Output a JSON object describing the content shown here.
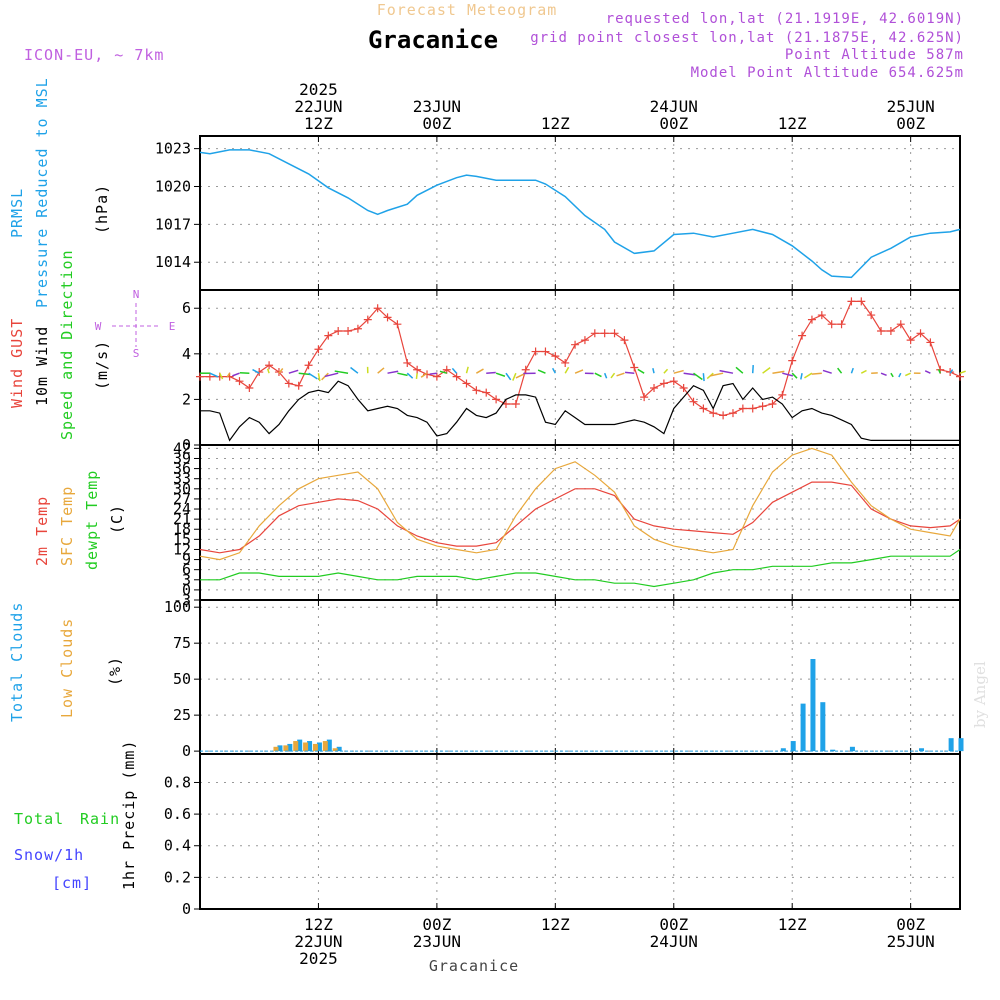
{
  "header": {
    "subtitle": "Forecast Meteogram",
    "model": "ICON-EU, ~ 7km",
    "location": "Gracanice",
    "requested": "requested lon,lat (21.1919E, 42.6019N)",
    "gridpoint": "grid point closest lon,lat (21.1875E, 42.625N)",
    "altitude": "Point Altitude 587m",
    "model_altitude": "Model Point Altitude 654.625m",
    "footer_location": "Gracanice",
    "credit": "by Angel"
  },
  "time_axis": {
    "top_labels": [
      {
        "h": 12,
        "lines": [
          "2025",
          "22JUN",
          "12Z"
        ]
      },
      {
        "h": 24,
        "lines": [
          "23JUN",
          "00Z"
        ]
      },
      {
        "h": 36,
        "lines": [
          "12Z"
        ]
      },
      {
        "h": 48,
        "lines": [
          "24JUN",
          "00Z"
        ]
      },
      {
        "h": 60,
        "lines": [
          "12Z"
        ]
      },
      {
        "h": 72,
        "lines": [
          "25JUN",
          "00Z"
        ]
      }
    ],
    "bottom_labels": [
      {
        "h": 12,
        "lines": [
          "12Z",
          "22JUN",
          "2025"
        ]
      },
      {
        "h": 24,
        "lines": [
          "00Z",
          "23JUN"
        ]
      },
      {
        "h": 36,
        "lines": [
          "12Z"
        ]
      },
      {
        "h": 48,
        "lines": [
          "00Z",
          "24JUN"
        ]
      },
      {
        "h": 60,
        "lines": [
          "12Z"
        ]
      },
      {
        "h": 72,
        "lines": [
          "00Z",
          "25JUN"
        ]
      }
    ],
    "start_hour": 0,
    "end_hour": 77
  },
  "panels": {
    "pressure": {
      "labels": [
        "PRMSL",
        "Pressure Reduced to MSL"
      ],
      "unit": "(hPa)",
      "ticks": [
        "1014",
        "1017",
        "1020",
        "1023"
      ]
    },
    "wind": {
      "labels": [
        "Wind GUST",
        "10m Wind",
        "Speed and Direction"
      ],
      "unit": "(m/s)",
      "ticks": [
        "0",
        "2",
        "4",
        "6"
      ],
      "compass": {
        "n": "N",
        "s": "S",
        "w": "W",
        "e": "E"
      }
    },
    "temp": {
      "labels": [
        "2m Temp",
        "SFC Temp",
        "dewpt Temp"
      ],
      "unit": "(C)",
      "ticks": [
        "-3",
        "0",
        "3",
        "6",
        "9",
        "12",
        "15",
        "18",
        "21",
        "24",
        "27",
        "30",
        "33",
        "36",
        "39",
        "42"
      ]
    },
    "cloud": {
      "labels": [
        "Total Clouds",
        "Low Clouds"
      ],
      "unit": "(%)",
      "ticks": [
        "0",
        "25",
        "50",
        "75",
        "100"
      ]
    },
    "precip": {
      "labels": [
        "Total",
        "Rain",
        "Snow/1h",
        "[cm]"
      ],
      "unit": "1hr Precip (mm)",
      "ticks": [
        "0",
        "0.2",
        "0.4",
        "0.6",
        "0.8"
      ]
    }
  },
  "colors": {
    "pressure": "#1fa2e8",
    "gust": "#e8453c",
    "wind": "#000000",
    "t2m": "#e8453c",
    "sfc": "#e8a83c",
    "dewpt": "#22cc22",
    "cloud_total": "#1fa2e8",
    "cloud_low": "#e8a83c",
    "rain": "#22cc22",
    "snow": "#4444ff",
    "title": "#f0c890",
    "model": "#c060e0",
    "info": "#b050d8"
  },
  "chart_data": [
    {
      "type": "line",
      "title": "PRMSL Pressure Reduced to MSL",
      "ylabel": "(hPa)",
      "ylim": [
        1011.8,
        1024
      ],
      "series": [
        {
          "name": "PRMSL",
          "x": [
            0,
            1,
            3,
            5,
            7,
            9,
            11,
            13,
            15,
            17,
            18,
            19,
            21,
            22,
            24,
            26,
            27,
            28,
            30,
            32,
            34,
            35,
            37,
            39,
            41,
            42,
            44,
            46,
            48,
            50,
            52,
            54,
            56,
            58,
            60,
            62,
            63,
            64,
            66,
            68,
            70,
            72,
            74,
            76,
            77
          ],
          "values": [
            1022.7,
            1022.6,
            1022.9,
            1022.9,
            1022.6,
            1021.8,
            1021.0,
            1019.9,
            1019.1,
            1018.1,
            1017.8,
            1018.1,
            1018.6,
            1019.3,
            1020.1,
            1020.7,
            1020.9,
            1020.8,
            1020.5,
            1020.5,
            1020.5,
            1020.2,
            1019.2,
            1017.7,
            1016.6,
            1015.6,
            1014.7,
            1014.9,
            1016.2,
            1016.3,
            1016.0,
            1016.3,
            1016.6,
            1016.2,
            1015.3,
            1014.1,
            1013.4,
            1012.9,
            1012.8,
            1014.4,
            1015.1,
            1016.0,
            1016.3,
            1016.4,
            1016.6
          ]
        }
      ]
    },
    {
      "type": "line",
      "title": "Wind GUST / 10m Wind Speed and Direction",
      "ylabel": "(m/s)",
      "ylim": [
        0,
        6.8
      ],
      "series": [
        {
          "name": "Wind GUST",
          "x": [
            0,
            1,
            2,
            3,
            4,
            5,
            6,
            7,
            8,
            9,
            10,
            11,
            12,
            13,
            14,
            15,
            16,
            17,
            18,
            19,
            20,
            21,
            22,
            23,
            24,
            25,
            26,
            27,
            28,
            29,
            30,
            31,
            32,
            33,
            34,
            35,
            36,
            37,
            38,
            39,
            40,
            41,
            42,
            43,
            44,
            45,
            46,
            47,
            48,
            49,
            50,
            51,
            52,
            53,
            54,
            55,
            56,
            57,
            58,
            59,
            60,
            61,
            62,
            63,
            64,
            65,
            66,
            67,
            68,
            69,
            70,
            71,
            72,
            73,
            74,
            75,
            76,
            77
          ],
          "values": [
            3.0,
            3.0,
            3.0,
            3.0,
            2.8,
            2.5,
            3.2,
            3.5,
            3.2,
            2.7,
            2.6,
            3.5,
            4.2,
            4.8,
            5.0,
            5.0,
            5.1,
            5.5,
            6.0,
            5.6,
            5.3,
            3.6,
            3.3,
            3.1,
            3.0,
            3.3,
            3.0,
            2.7,
            2.4,
            2.3,
            2.0,
            1.8,
            1.8,
            3.3,
            4.1,
            4.1,
            3.9,
            3.6,
            4.4,
            4.6,
            4.9,
            4.9,
            4.9,
            4.6,
            3.4,
            2.1,
            2.5,
            2.7,
            2.8,
            2.5,
            1.9,
            1.6,
            1.4,
            1.3,
            1.4,
            1.6,
            1.6,
            1.7,
            1.8,
            2.2,
            3.7,
            4.8,
            5.5,
            5.7,
            5.3,
            5.3,
            6.3,
            6.3,
            5.7,
            5.0,
            5.0,
            5.3,
            4.6,
            4.9,
            4.5,
            3.3,
            3.2,
            3.0
          ]
        },
        {
          "name": "10m Wind",
          "x": [
            0,
            1,
            2,
            3,
            4,
            5,
            6,
            7,
            8,
            9,
            10,
            11,
            12,
            13,
            14,
            15,
            16,
            17,
            18,
            19,
            20,
            21,
            22,
            23,
            24,
            25,
            26,
            27,
            28,
            29,
            30,
            31,
            32,
            33,
            34,
            35,
            36,
            37,
            38,
            39,
            40,
            41,
            42,
            43,
            44,
            45,
            46,
            47,
            48,
            49,
            50,
            51,
            52,
            53,
            54,
            55,
            56,
            57,
            58,
            59,
            60,
            61,
            62,
            63,
            64,
            65,
            66,
            67,
            68,
            69,
            70,
            71,
            72,
            73,
            74,
            75,
            76,
            77
          ],
          "values": [
            1.5,
            1.5,
            1.4,
            0.2,
            0.8,
            1.2,
            1.0,
            0.5,
            0.9,
            1.5,
            2.0,
            2.3,
            2.4,
            2.3,
            2.8,
            2.6,
            2.0,
            1.5,
            1.6,
            1.7,
            1.6,
            1.3,
            1.2,
            1.0,
            0.4,
            0.5,
            1.0,
            1.6,
            1.3,
            1.2,
            1.4,
            2.0,
            2.2,
            2.2,
            2.1,
            1.0,
            0.9,
            1.5,
            1.2,
            0.9,
            0.9,
            0.9,
            0.9,
            1.0,
            1.1,
            1.0,
            0.8,
            0.5,
            1.6,
            2.1,
            2.6,
            2.4,
            1.6,
            2.6,
            2.7,
            2.0,
            2.5,
            2.0,
            2.1,
            1.8,
            1.2,
            1.5,
            1.6,
            1.4,
            1.3,
            1.1,
            0.9,
            0.3,
            0.2,
            0.2,
            0.2,
            0.2,
            0.2,
            0.2,
            0.2,
            0.2,
            0.2,
            0.2
          ]
        }
      ]
    },
    {
      "type": "line",
      "title": "2m Temp / SFC Temp / dewpt Temp",
      "ylabel": "(C)",
      "ylim": [
        -3,
        43
      ],
      "series": [
        {
          "name": "2m Temp",
          "x": [
            0,
            2,
            4,
            6,
            8,
            10,
            12,
            14,
            16,
            18,
            20,
            22,
            24,
            26,
            28,
            30,
            32,
            34,
            36,
            38,
            40,
            42,
            44,
            46,
            48,
            50,
            52,
            54,
            56,
            58,
            60,
            62,
            64,
            66,
            68,
            70,
            72,
            74,
            76,
            77
          ],
          "values": [
            12,
            11,
            12,
            16,
            22,
            25,
            26,
            27,
            26.5,
            24,
            19,
            16,
            14,
            13,
            13,
            14,
            19,
            24,
            27,
            30,
            30,
            28,
            21,
            19,
            18,
            17.5,
            17,
            16.5,
            20,
            26,
            29,
            32,
            32,
            31,
            24,
            21,
            19,
            18.5,
            19,
            21
          ]
        },
        {
          "name": "SFC Temp",
          "x": [
            0,
            2,
            4,
            6,
            8,
            10,
            12,
            14,
            16,
            18,
            20,
            22,
            24,
            26,
            28,
            30,
            32,
            34,
            36,
            38,
            40,
            42,
            44,
            46,
            48,
            50,
            52,
            54,
            56,
            58,
            60,
            62,
            64,
            66,
            68,
            70,
            72,
            74,
            76,
            77
          ],
          "values": [
            10,
            9,
            11,
            19,
            25,
            30,
            33,
            34,
            35,
            30,
            20,
            15,
            13,
            12,
            11,
            12,
            22,
            30,
            36,
            38,
            34,
            29,
            19,
            15,
            13,
            12,
            11,
            12,
            25,
            35,
            40,
            42,
            40,
            32,
            25,
            21,
            18,
            17,
            16,
            21
          ]
        },
        {
          "name": "dewpt Temp",
          "x": [
            0,
            2,
            4,
            6,
            8,
            10,
            12,
            14,
            16,
            18,
            20,
            22,
            24,
            26,
            28,
            30,
            32,
            34,
            36,
            38,
            40,
            42,
            44,
            46,
            48,
            50,
            52,
            54,
            56,
            58,
            60,
            62,
            64,
            66,
            68,
            70,
            72,
            74,
            76,
            77
          ],
          "values": [
            3,
            3,
            5,
            5,
            4,
            4,
            4,
            5,
            4,
            3,
            3,
            4,
            4,
            4,
            3,
            4,
            5,
            5,
            4,
            3,
            3,
            2,
            2,
            1,
            2,
            3,
            5,
            6,
            6,
            7,
            7,
            7,
            8,
            8,
            9,
            10,
            10,
            10,
            10,
            12
          ]
        }
      ]
    },
    {
      "type": "bar",
      "title": "Total Clouds / Low Clouds",
      "ylabel": "(%)",
      "ylim": [
        -2,
        105
      ],
      "series": [
        {
          "name": "Total Clouds",
          "x": [
            8,
            9,
            10,
            11,
            12,
            13,
            14,
            59,
            60,
            61,
            62,
            63,
            64,
            66,
            73,
            76,
            77
          ],
          "values": [
            4,
            5,
            8,
            7,
            6,
            8,
            3,
            2,
            7,
            33,
            64,
            34,
            1,
            3,
            2,
            9,
            9
          ]
        },
        {
          "name": "Low Clouds",
          "x": [
            8,
            9,
            10,
            11,
            12,
            13,
            14
          ],
          "values": [
            3,
            4,
            7,
            6,
            5,
            7,
            2
          ]
        }
      ]
    },
    {
      "type": "bar",
      "title": "1hr Precip",
      "ylabel": "1hr Precip (mm)",
      "ylim": [
        0,
        0.98
      ],
      "series": [
        {
          "name": "Total Rain",
          "x": [],
          "values": []
        },
        {
          "name": "Snow/1h [cm]",
          "x": [],
          "values": []
        }
      ]
    }
  ]
}
